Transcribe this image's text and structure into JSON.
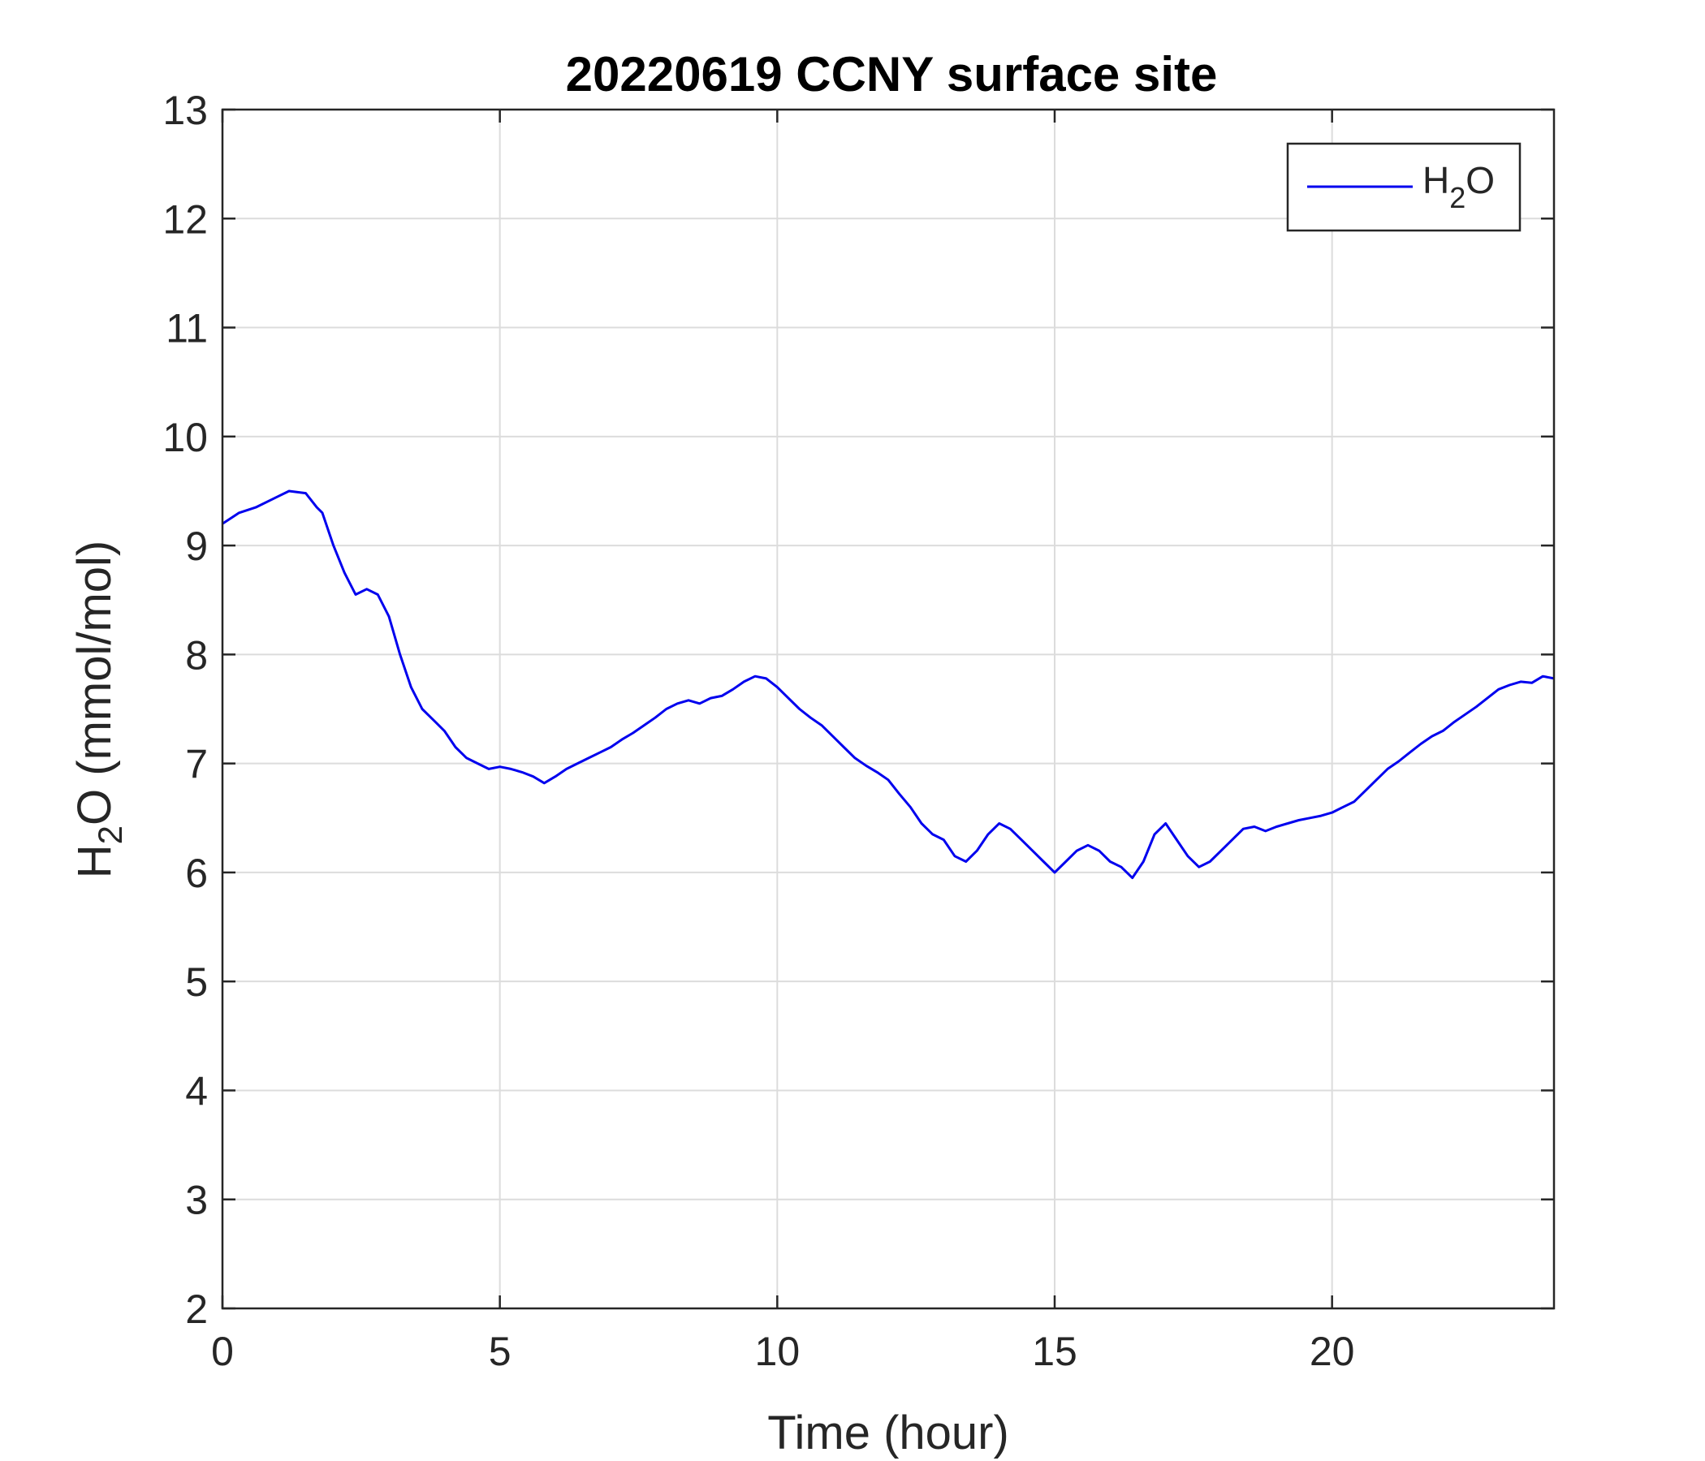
{
  "chart_data": {
    "type": "line",
    "title": "20220619 CCNY surface site",
    "xlabel": "Time (hour)",
    "ylabel": {
      "pre": "H",
      "sub": "2",
      "post": "O (mmol/mol)"
    },
    "xlim": [
      0,
      24
    ],
    "ylim": [
      2,
      13
    ],
    "xticks": [
      0,
      5,
      10,
      15,
      20
    ],
    "yticks": [
      2,
      3,
      4,
      5,
      6,
      7,
      8,
      9,
      10,
      11,
      12,
      13
    ],
    "grid": true,
    "legend": {
      "position": "top-right",
      "pre": "H",
      "sub": "2",
      "post": "O"
    },
    "series": [
      {
        "name": "H2O",
        "color": "#0000ee",
        "x": [
          0,
          0.3,
          0.6,
          1.0,
          1.2,
          1.5,
          1.7,
          1.8,
          2.0,
          2.2,
          2.4,
          2.6,
          2.8,
          3.0,
          3.2,
          3.4,
          3.6,
          3.8,
          4.0,
          4.2,
          4.4,
          4.6,
          4.8,
          5.0,
          5.2,
          5.4,
          5.6,
          5.8,
          6.0,
          6.2,
          6.4,
          6.6,
          6.8,
          7.0,
          7.2,
          7.4,
          7.6,
          7.8,
          8.0,
          8.2,
          8.4,
          8.6,
          8.8,
          9.0,
          9.2,
          9.4,
          9.6,
          9.8,
          10.0,
          10.2,
          10.4,
          10.6,
          10.8,
          11.0,
          11.2,
          11.4,
          11.6,
          11.8,
          12.0,
          12.2,
          12.4,
          12.6,
          12.8,
          13.0,
          13.2,
          13.4,
          13.6,
          13.8,
          14.0,
          14.2,
          14.4,
          14.6,
          14.8,
          15.0,
          15.2,
          15.4,
          15.6,
          15.8,
          16.0,
          16.2,
          16.4,
          16.6,
          16.8,
          17.0,
          17.2,
          17.4,
          17.6,
          17.8,
          18.0,
          18.2,
          18.4,
          18.6,
          18.8,
          19.0,
          19.2,
          19.4,
          19.6,
          19.8,
          20.0,
          20.2,
          20.4,
          20.6,
          20.8,
          21.0,
          21.2,
          21.4,
          21.6,
          21.8,
          22.0,
          22.2,
          22.4,
          22.6,
          22.8,
          23.0,
          23.2,
          23.4,
          23.6,
          23.8,
          24.0
        ],
        "values": [
          9.2,
          9.3,
          9.35,
          9.45,
          9.5,
          9.48,
          9.35,
          9.3,
          9.0,
          8.75,
          8.55,
          8.6,
          8.55,
          8.35,
          8.0,
          7.7,
          7.5,
          7.4,
          7.3,
          7.15,
          7.05,
          7.0,
          6.95,
          6.97,
          6.95,
          6.92,
          6.88,
          6.82,
          6.88,
          6.95,
          7.0,
          7.05,
          7.1,
          7.15,
          7.22,
          7.28,
          7.35,
          7.42,
          7.5,
          7.55,
          7.58,
          7.55,
          7.6,
          7.62,
          7.68,
          7.75,
          7.8,
          7.78,
          7.7,
          7.6,
          7.5,
          7.42,
          7.35,
          7.25,
          7.15,
          7.05,
          6.98,
          6.92,
          6.85,
          6.72,
          6.6,
          6.45,
          6.35,
          6.3,
          6.15,
          6.1,
          6.2,
          6.35,
          6.45,
          6.4,
          6.3,
          6.2,
          6.1,
          6.0,
          6.1,
          6.2,
          6.25,
          6.2,
          6.1,
          6.05,
          5.95,
          6.1,
          6.35,
          6.45,
          6.3,
          6.15,
          6.05,
          6.1,
          6.2,
          6.3,
          6.4,
          6.42,
          6.38,
          6.42,
          6.45,
          6.48,
          6.5,
          6.52,
          6.55,
          6.6,
          6.65,
          6.75,
          6.85,
          6.95,
          7.02,
          7.1,
          7.18,
          7.25,
          7.3,
          7.38,
          7.45,
          7.52,
          7.6,
          7.68,
          7.72,
          7.75,
          7.74,
          7.8,
          7.78
        ]
      }
    ]
  }
}
